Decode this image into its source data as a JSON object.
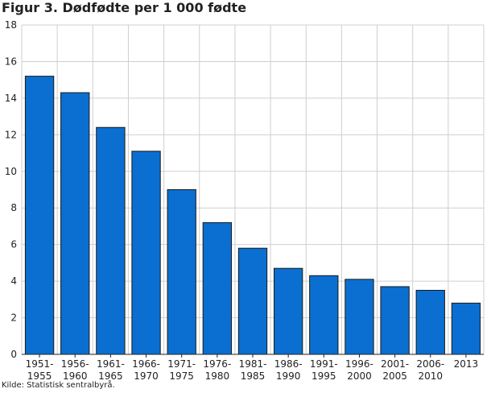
{
  "title": "Figur 3. Dødfødte per 1 000 fødte",
  "source": "Kilde: Statistisk sentralbyrå.",
  "colors": {
    "bar": "#0a6fd0",
    "bar_stroke": "#1a1a1a",
    "grid": "#cfcfcf",
    "axis": "#222222"
  },
  "chart_data": {
    "type": "bar",
    "title": "Figur 3. Dødfødte per 1 000 fødte",
    "xlabel": "",
    "ylabel": "",
    "ylim": [
      0,
      18
    ],
    "yticks": [
      0,
      2,
      4,
      6,
      8,
      10,
      12,
      14,
      16,
      18
    ],
    "grid": true,
    "categories": [
      [
        "1951-",
        "1955"
      ],
      [
        "1956-",
        "1960"
      ],
      [
        "1961-",
        "1965"
      ],
      [
        "1966-",
        "1970"
      ],
      [
        "1971-",
        "1975"
      ],
      [
        "1976-",
        "1980"
      ],
      [
        "1981-",
        "1985"
      ],
      [
        "1986-",
        "1990"
      ],
      [
        "1991-",
        "1995"
      ],
      [
        "1996-",
        "2000"
      ],
      [
        "2001-",
        "2005"
      ],
      [
        "2006-",
        "2010"
      ],
      [
        "2013"
      ]
    ],
    "values": [
      15.2,
      14.3,
      12.4,
      11.1,
      9.0,
      7.2,
      5.8,
      4.7,
      4.3,
      4.1,
      3.7,
      3.5,
      2.8
    ]
  }
}
